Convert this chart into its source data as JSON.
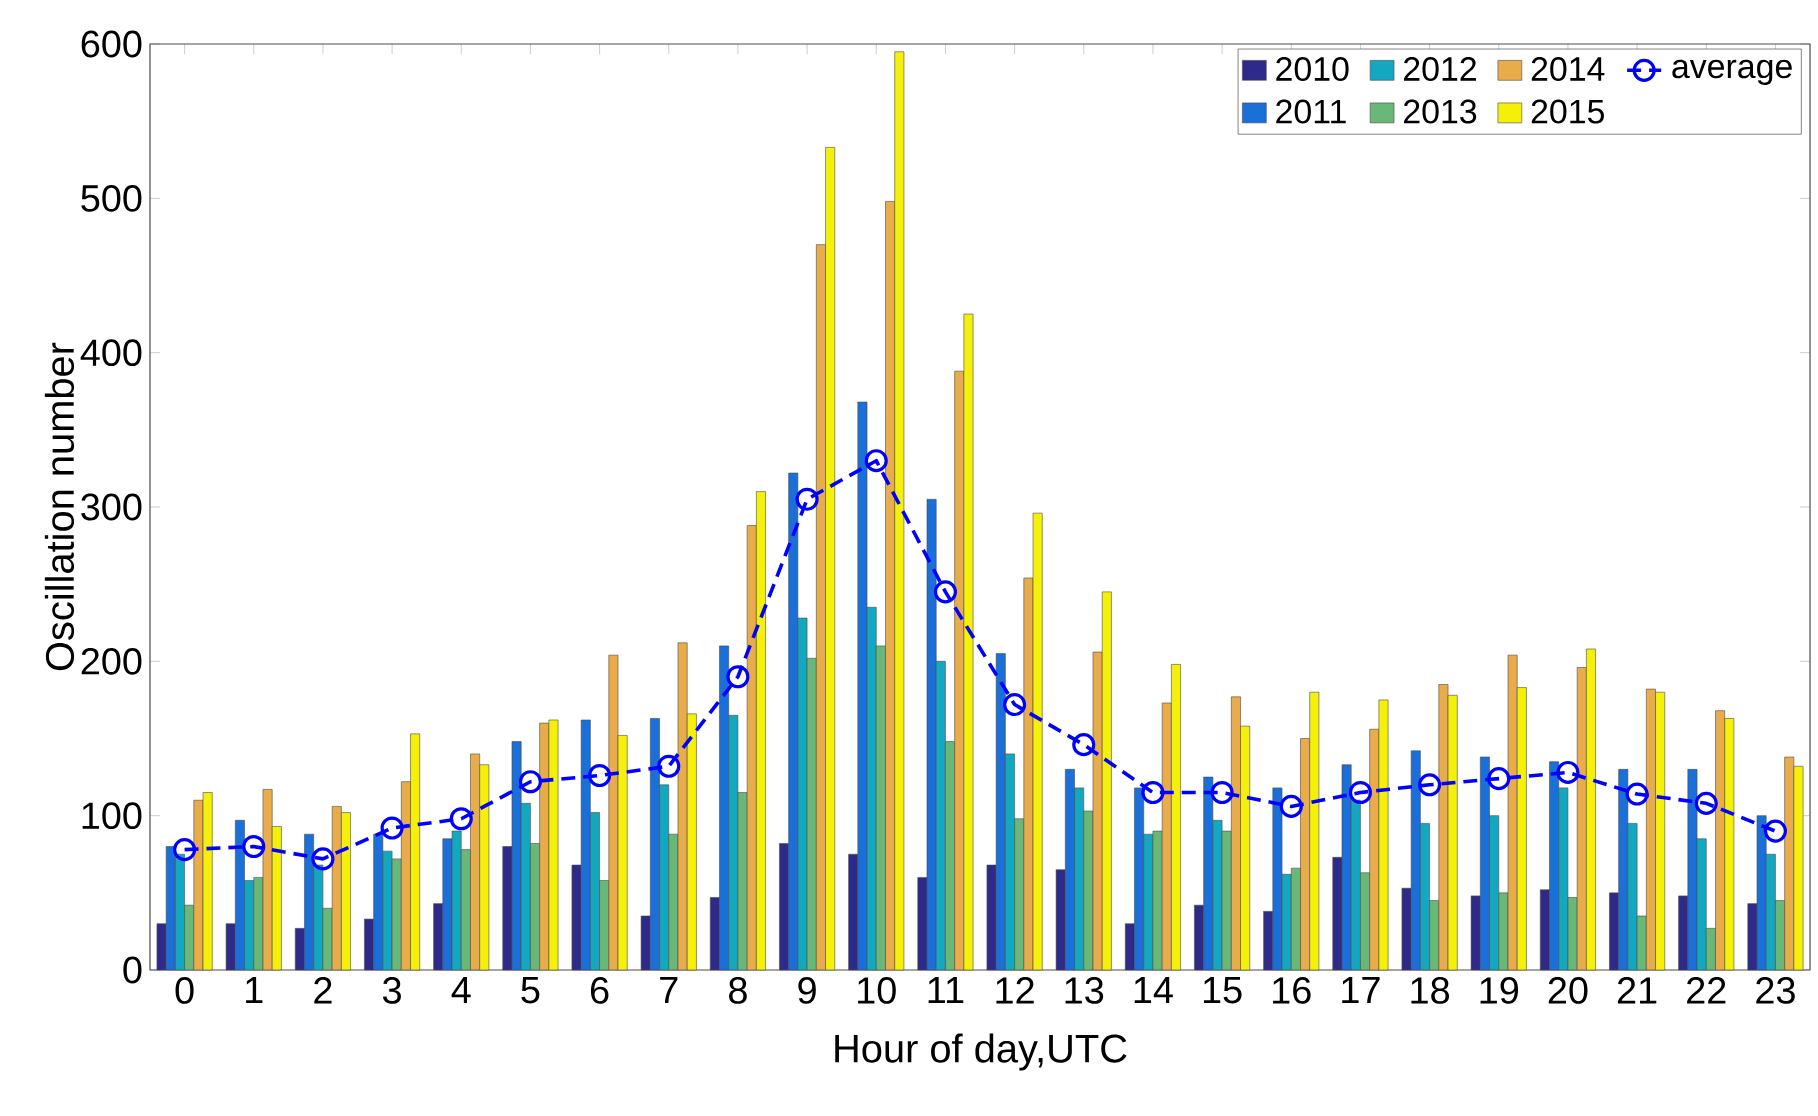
{
  "chart_data": {
    "type": "bar",
    "xlabel": "Hour of day,UTC",
    "ylabel": "Oscillation number",
    "categories": [
      "0",
      "1",
      "2",
      "3",
      "4",
      "5",
      "6",
      "7",
      "8",
      "9",
      "10",
      "11",
      "12",
      "13",
      "14",
      "15",
      "16",
      "17",
      "18",
      "19",
      "20",
      "21",
      "22",
      "23"
    ],
    "series": [
      {
        "name": "2010",
        "color": "#2e2a8a",
        "values": [
          30,
          30,
          27,
          33,
          43,
          80,
          68,
          35,
          47,
          82,
          75,
          60,
          68,
          65,
          30,
          42,
          38,
          73,
          53,
          48,
          52,
          50,
          48,
          43
        ]
      },
      {
        "name": "2011",
        "color": "#1a6fd8",
        "values": [
          80,
          97,
          88,
          88,
          85,
          148,
          162,
          163,
          210,
          322,
          368,
          305,
          205,
          130,
          118,
          125,
          118,
          133,
          142,
          138,
          135,
          130,
          130,
          100
        ]
      },
      {
        "name": "2012",
        "color": "#14a8c0",
        "values": [
          75,
          58,
          68,
          77,
          90,
          108,
          102,
          120,
          165,
          228,
          235,
          200,
          140,
          118,
          88,
          97,
          62,
          110,
          95,
          100,
          118,
          95,
          85,
          75
        ]
      },
      {
        "name": "2013",
        "color": "#6ab877",
        "values": [
          42,
          60,
          40,
          72,
          78,
          82,
          58,
          88,
          115,
          202,
          210,
          148,
          98,
          103,
          90,
          90,
          66,
          63,
          45,
          50,
          47,
          35,
          27,
          45
        ]
      },
      {
        "name": "2014",
        "color": "#e8ac4a",
        "values": [
          110,
          117,
          106,
          122,
          140,
          160,
          204,
          212,
          288,
          470,
          498,
          388,
          254,
          206,
          173,
          177,
          150,
          156,
          185,
          204,
          196,
          182,
          168,
          138
        ]
      },
      {
        "name": "2015",
        "color": "#f5f00a",
        "values": [
          115,
          93,
          102,
          153,
          133,
          162,
          152,
          166,
          310,
          533,
          595,
          425,
          296,
          245,
          198,
          158,
          180,
          175,
          178,
          183,
          208,
          180,
          163,
          132
        ]
      },
      {
        "name": "average",
        "type": "line",
        "color": "#0000ff",
        "marker": "circle",
        "line_style": "dashed",
        "values": [
          78,
          80,
          72,
          92,
          98,
          122,
          126,
          132,
          190,
          305,
          330,
          245,
          172,
          146,
          115,
          115,
          106,
          115,
          120,
          124,
          128,
          114,
          108,
          90
        ]
      }
    ],
    "ylim": [
      0,
      600
    ],
    "yticks": [
      0,
      100,
      200,
      300,
      400,
      500,
      600
    ],
    "legend": "top right"
  }
}
